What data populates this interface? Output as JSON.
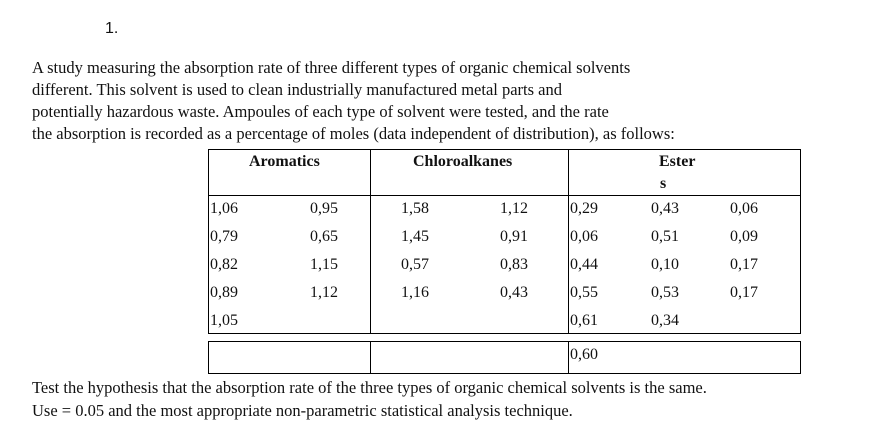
{
  "question_number": "1.",
  "intro_lines": [
    "A study measuring the absorption rate of three different types of organic chemical solvents",
    "different. This solvent is used to clean industrially manufactured metal parts and",
    "potentially hazardous waste. Ampoules of each type of solvent were tested, and the rate",
    "the absorption is recorded as a percentage of moles (data independent of distribution), as follows:"
  ],
  "table": {
    "headers": {
      "aromatics": "Aromatics",
      "chloroalkanes": "Chloroalkanes",
      "esters_line1": "Ester",
      "esters_line2": "s"
    },
    "aromatics": [
      [
        "1,06",
        "0,95"
      ],
      [
        "0,79",
        "0,65"
      ],
      [
        "0,82",
        "1,15"
      ],
      [
        "0,89",
        "1,12"
      ],
      [
        "1,05",
        ""
      ]
    ],
    "chloroalkanes": [
      [
        "1,58",
        "1,12"
      ],
      [
        "1,45",
        "0,91"
      ],
      [
        "0,57",
        "0,83"
      ],
      [
        "1,16",
        "0,43"
      ]
    ],
    "esters": [
      [
        "0,29",
        "0,43",
        "0,06"
      ],
      [
        "0,06",
        "0,51",
        "0,09"
      ],
      [
        "0,44",
        "0,10",
        "0,17"
      ],
      [
        "0,55",
        "0,53",
        "0,17"
      ],
      [
        "0,61",
        "0,34",
        ""
      ]
    ],
    "extra_row_value": "0,60"
  },
  "closing_lines": [
    "Test the hypothesis that the absorption rate of the three types of organic chemical solvents is the same.",
    "Use = 0.05 and the most appropriate non-parametric statistical analysis technique."
  ]
}
